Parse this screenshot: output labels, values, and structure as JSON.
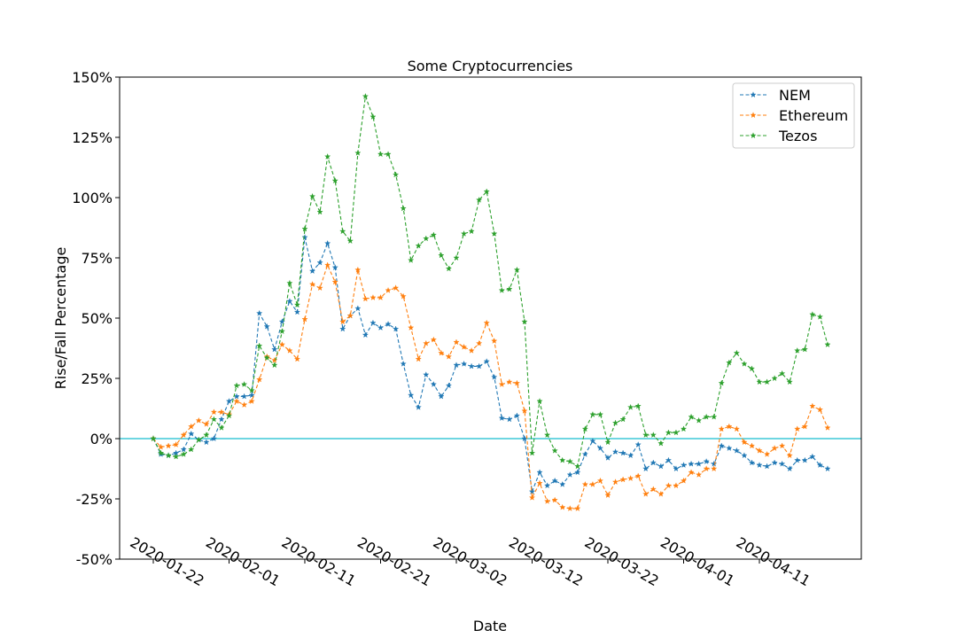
{
  "chart_data": {
    "type": "line",
    "title": "Some Cryptocurrencies",
    "xlabel": "Date",
    "ylabel": "Rise/Fall Percentage",
    "ylim": [
      -50,
      150
    ],
    "y_ticks": [
      -50,
      -25,
      0,
      25,
      50,
      75,
      100,
      125,
      150
    ],
    "y_tick_labels": [
      "-50%",
      "-25%",
      "0%",
      "25%",
      "50%",
      "75%",
      "100%",
      "125%",
      "150%"
    ],
    "x_start": "2020-01-22",
    "x_ticks": [
      "2020-01-22",
      "2020-02-01",
      "2020-02-11",
      "2020-02-21",
      "2020-03-02",
      "2020-03-12",
      "2020-03-22",
      "2020-04-01",
      "2020-04-11"
    ],
    "reference_line": {
      "y": 0,
      "color": "#17becf"
    },
    "legend_position": "top-right",
    "grid": false,
    "series": [
      {
        "name": "NEM",
        "color": "#1f77b4",
        "values": [
          0,
          -6.5,
          -7,
          -6,
          -4.5,
          2,
          -0.5,
          -1.5,
          0,
          8,
          15.5,
          17.5,
          17.5,
          18,
          52,
          46.5,
          37,
          48.5,
          57,
          52.5,
          83.5,
          69.5,
          73,
          81,
          71,
          45.5,
          51,
          54,
          43,
          48,
          46,
          47.5,
          45.5,
          31,
          18,
          13,
          26.5,
          22.5,
          17.5,
          22,
          30.5,
          31,
          30,
          30,
          32,
          25.5,
          8.5,
          8,
          9.5,
          0,
          -22,
          -14,
          -19.5,
          -17.5,
          -19,
          -15,
          -14,
          -6.5,
          -1,
          -4,
          -8,
          -5.5,
          -6,
          -7,
          -2.5,
          -12.5,
          -10,
          -11.5,
          -9,
          -12.5,
          -11,
          -10.5,
          -10.5,
          -9.5,
          -10.5,
          -3,
          -4,
          -5,
          -7,
          -10,
          -11,
          -11.5,
          -10,
          -10.5,
          -12.5,
          -9,
          -9,
          -7.5,
          -11,
          -12.5
        ]
      },
      {
        "name": "Ethereum",
        "color": "#ff7f0e",
        "values": [
          0,
          -3.5,
          -3,
          -2.5,
          1.5,
          5,
          7.5,
          6,
          11,
          11,
          10,
          15.5,
          14,
          15.5,
          24.5,
          34,
          32.5,
          39,
          36.5,
          33,
          49.5,
          64,
          62.5,
          72,
          65,
          48.5,
          51,
          70,
          58,
          58.5,
          58.5,
          61.5,
          62.5,
          59,
          46,
          33,
          39.5,
          41,
          35.5,
          34,
          40,
          38,
          36.5,
          39.5,
          48,
          40.5,
          22.5,
          23.5,
          23,
          11.5,
          -24.5,
          -18.5,
          -26,
          -25.5,
          -28.5,
          -29,
          -29,
          -19,
          -19,
          -17.5,
          -23.5,
          -18,
          -17,
          -16.5,
          -15.5,
          -23,
          -21,
          -23,
          -19.5,
          -19.5,
          -17.5,
          -14,
          -15,
          -12.5,
          -12.5,
          4,
          5,
          4,
          -1.5,
          -3,
          -5,
          -6.5,
          -4,
          -3,
          -7,
          4,
          5,
          13.5,
          12,
          4.5
        ]
      },
      {
        "name": "Tezos",
        "color": "#2ca02c",
        "values": [
          0,
          -6,
          -7,
          -7.5,
          -6.5,
          -4.5,
          -0.5,
          1.5,
          8,
          4.5,
          9.5,
          22,
          22.5,
          20,
          38.5,
          33.5,
          30.5,
          44.5,
          64.5,
          55.5,
          87,
          100.5,
          94,
          117,
          107,
          86,
          82,
          118.5,
          142,
          133.5,
          118,
          118,
          109.5,
          95.5,
          74,
          80,
          83,
          84.5,
          76,
          70.5,
          75,
          85,
          86,
          99,
          102.5,
          85,
          61.5,
          62,
          70,
          48.5,
          -6,
          15.5,
          1.5,
          -5,
          -9,
          -9.5,
          -11.5,
          4,
          10,
          10,
          -1.5,
          6.5,
          8,
          13,
          13.5,
          1.5,
          1.5,
          -2,
          2.5,
          2.5,
          4,
          9,
          7.5,
          9,
          9,
          23,
          31.5,
          35.5,
          31,
          29,
          23.5,
          23.5,
          25,
          27,
          23.5,
          36.5,
          37,
          51.5,
          50.5,
          39
        ]
      }
    ]
  }
}
